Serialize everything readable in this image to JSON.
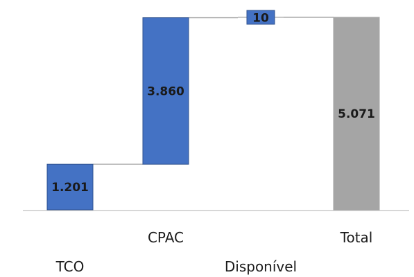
{
  "chart_data": {
    "type": "bar",
    "subtype": "waterfall",
    "categories": [
      "TCO",
      "CPAC",
      "Disponível",
      "Total"
    ],
    "values": [
      1201,
      3860,
      10,
      5071
    ],
    "value_labels": [
      "1.201",
      "3.860",
      "10",
      "5.071"
    ],
    "bar_kinds": [
      "increase",
      "increase",
      "increase",
      "total"
    ],
    "title": "",
    "xlabel": "",
    "ylabel": "",
    "ylim": [
      0,
      5300
    ],
    "grid": false,
    "legend": "none",
    "colors": {
      "increase": "#4472C4",
      "increase_border": "#2F528F",
      "total": "#A5A5A5",
      "connector": "#A6A6A6",
      "axis": "#BFBFBF",
      "text": "#1a1a1a"
    }
  }
}
